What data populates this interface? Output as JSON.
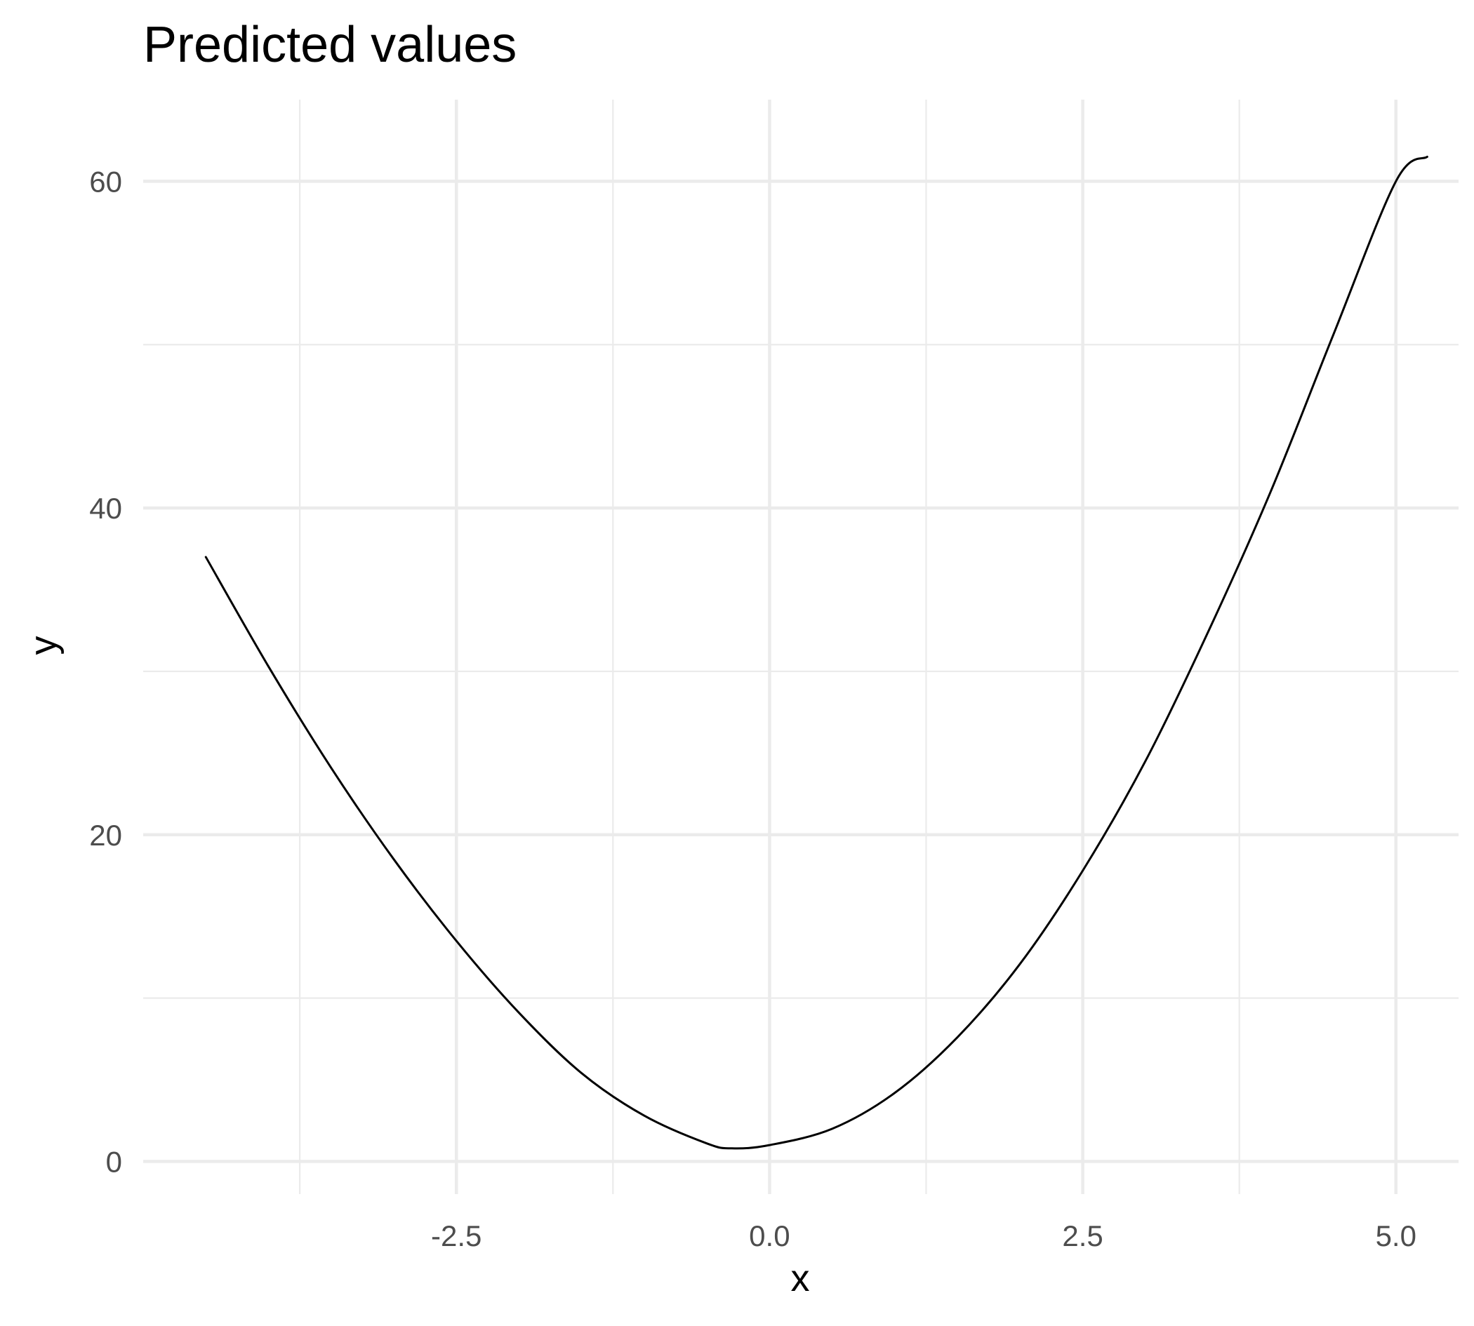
{
  "chart_data": {
    "type": "line",
    "title": "Predicted values",
    "xlabel": "x",
    "ylabel": "y",
    "xlim": [
      -5,
      5.5
    ],
    "ylim": [
      -2,
      65
    ],
    "x_ticks": [
      -2.5,
      0.0,
      2.5,
      5.0
    ],
    "x_tick_labels": [
      "-2.5",
      "0.0",
      "2.5",
      "5.0"
    ],
    "x_minor_ticks": [
      -3.75,
      -1.25,
      1.25,
      3.75
    ],
    "y_ticks": [
      0,
      20,
      40,
      60
    ],
    "y_tick_labels": [
      "0",
      "20",
      "40",
      "60"
    ],
    "y_minor_ticks": [
      10,
      30,
      50
    ],
    "grid": true,
    "legend": "none",
    "line_color": "#000000",
    "grid_color": "#ebebeb",
    "tick_label_color": "#4d4d4d",
    "series": [
      {
        "x": [
          -4.5,
          -4.0,
          -3.5,
          -3.0,
          -2.5,
          -2.0,
          -1.5,
          -1.0,
          -0.5,
          -0.3,
          0.0,
          0.5,
          1.0,
          1.5,
          2.0,
          2.5,
          3.0,
          3.5,
          4.0,
          4.5,
          5.0,
          5.25
        ],
        "values": [
          37.0,
          30.3,
          24.1,
          18.5,
          13.5,
          9.1,
          5.4,
          2.8,
          1.1,
          0.8,
          1.0,
          2.0,
          4.2,
          7.6,
          12.1,
          17.8,
          24.5,
          32.4,
          41.0,
          50.6,
          60.0,
          61.5
        ]
      }
    ]
  }
}
